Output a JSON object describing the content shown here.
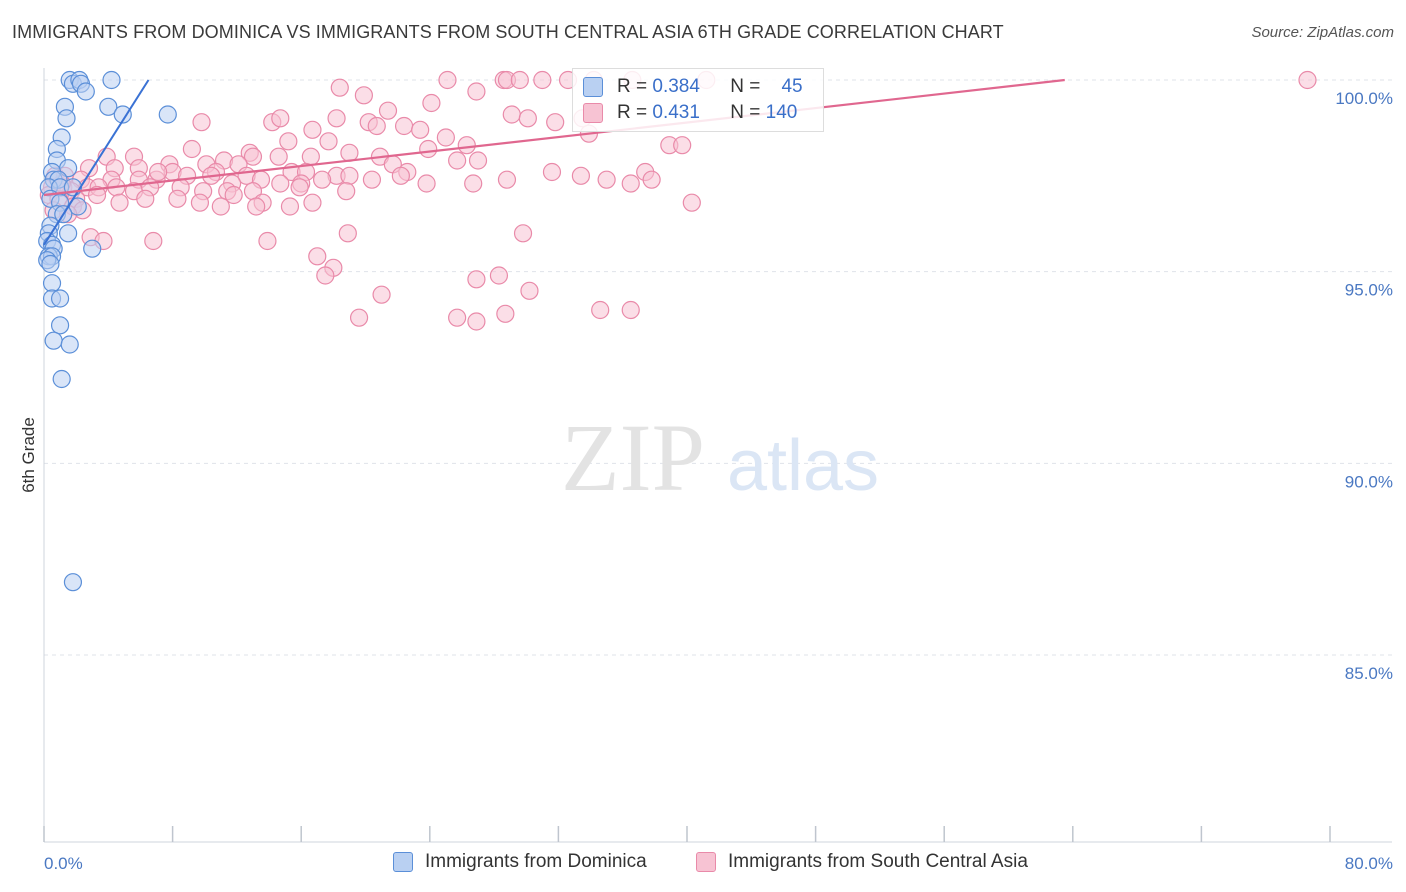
{
  "title": "IMMIGRANTS FROM DOMINICA VS IMMIGRANTS FROM SOUTH CENTRAL ASIA 6TH GRADE CORRELATION CHART",
  "source": "Source: ZipAtlas.com",
  "watermark": {
    "zip": "ZIP",
    "atlas": "atlas"
  },
  "legend": {
    "rows": [
      {
        "r_label": "R =",
        "r_value": "0.384",
        "n_label": "N =",
        "n_value": "45"
      },
      {
        "r_label": "R =",
        "r_value": "0.431",
        "n_label": "N =",
        "n_value": "140"
      }
    ]
  },
  "colors": {
    "dominica_fill": "#b9d0f2",
    "dominica_stroke": "#5b8fd8",
    "dominica_line": "#3a72d4",
    "asia_fill": "#f7c3d3",
    "asia_stroke": "#e98aa9",
    "asia_line": "#e0678f",
    "grid": "#dfe3ea",
    "tick_text": "#4a78c2"
  },
  "chart_data": {
    "type": "scatter",
    "title": "IMMIGRANTS FROM DOMINICA VS IMMIGRANTS FROM SOUTH CENTRAL ASIA 6TH GRADE CORRELATION CHART",
    "xlabel": "",
    "ylabel": "6th Grade",
    "xlim": [
      0,
      80
    ],
    "ylim": [
      80,
      100.8
    ],
    "x_tick_labels": [
      "0.0%",
      "80.0%"
    ],
    "y_ticks": [
      100,
      95,
      90,
      85
    ],
    "y_tick_labels": [
      "100.0%",
      "95.0%",
      "90.0%",
      "85.0%"
    ],
    "series": [
      {
        "name": "Immigrants from Dominica",
        "R": 0.384,
        "N": 45,
        "trend": {
          "x": [
            0,
            6.5
          ],
          "y": [
            95.7,
            100.0
          ]
        },
        "points": [
          [
            1.6,
            100
          ],
          [
            1.8,
            99.9
          ],
          [
            2.2,
            100
          ],
          [
            2.3,
            99.9
          ],
          [
            2.6,
            99.7
          ],
          [
            4.2,
            100
          ],
          [
            4.0,
            99.3
          ],
          [
            1.3,
            99.3
          ],
          [
            1.4,
            99.0
          ],
          [
            4.9,
            99.1
          ],
          [
            7.7,
            99.1
          ],
          [
            1.1,
            98.5
          ],
          [
            0.8,
            98.2
          ],
          [
            0.8,
            97.9
          ],
          [
            1.5,
            97.7
          ],
          [
            0.5,
            97.6
          ],
          [
            0.6,
            97.4
          ],
          [
            0.9,
            97.4
          ],
          [
            0.3,
            97.2
          ],
          [
            1.0,
            97.2
          ],
          [
            1.8,
            97.2
          ],
          [
            0.4,
            96.9
          ],
          [
            1.0,
            96.8
          ],
          [
            2.1,
            96.7
          ],
          [
            0.8,
            96.5
          ],
          [
            1.2,
            96.5
          ],
          [
            0.4,
            96.2
          ],
          [
            0.3,
            96.0
          ],
          [
            1.5,
            96.0
          ],
          [
            0.2,
            95.8
          ],
          [
            0.5,
            95.7
          ],
          [
            0.6,
            95.6
          ],
          [
            3.0,
            95.6
          ],
          [
            0.3,
            95.4
          ],
          [
            0.5,
            95.4
          ],
          [
            0.2,
            95.3
          ],
          [
            0.4,
            95.2
          ],
          [
            0.5,
            94.7
          ],
          [
            0.5,
            94.3
          ],
          [
            1.0,
            94.3
          ],
          [
            1.0,
            93.6
          ],
          [
            0.6,
            93.2
          ],
          [
            1.6,
            93.1
          ],
          [
            1.1,
            92.2
          ],
          [
            1.8,
            86.9
          ]
        ]
      },
      {
        "name": "Immigrants from South Central Asia",
        "R": 0.431,
        "N": 140,
        "trend": {
          "x": [
            0,
            63.5
          ],
          "y": [
            97.0,
            100.0
          ]
        },
        "points": [
          [
            18.4,
            99.8
          ],
          [
            25.1,
            100
          ],
          [
            28.6,
            100
          ],
          [
            28.8,
            100
          ],
          [
            29.6,
            100
          ],
          [
            31.0,
            100
          ],
          [
            32.6,
            100
          ],
          [
            34.2,
            100
          ],
          [
            36.6,
            100
          ],
          [
            41.2,
            100
          ],
          [
            78.6,
            100
          ],
          [
            26.9,
            99.7
          ],
          [
            19.9,
            99.6
          ],
          [
            24.1,
            99.4
          ],
          [
            21.4,
            99.2
          ],
          [
            29.1,
            99.1
          ],
          [
            30.1,
            99.0
          ],
          [
            31.8,
            98.9
          ],
          [
            33.5,
            99.0
          ],
          [
            18.2,
            99.0
          ],
          [
            20.2,
            98.9
          ],
          [
            20.7,
            98.8
          ],
          [
            16.7,
            98.7
          ],
          [
            22.4,
            98.8
          ],
          [
            14.2,
            98.9
          ],
          [
            14.7,
            99.0
          ],
          [
            9.8,
            98.9
          ],
          [
            23.4,
            98.7
          ],
          [
            25.0,
            98.5
          ],
          [
            15.2,
            98.4
          ],
          [
            17.7,
            98.4
          ],
          [
            23.9,
            98.2
          ],
          [
            26.3,
            98.3
          ],
          [
            38.9,
            98.3
          ],
          [
            9.2,
            98.2
          ],
          [
            12.8,
            98.1
          ],
          [
            16.6,
            98.0
          ],
          [
            19.0,
            98.1
          ],
          [
            13.0,
            98.0
          ],
          [
            14.6,
            98.0
          ],
          [
            20.9,
            98.0
          ],
          [
            3.9,
            98.0
          ],
          [
            5.6,
            98.0
          ],
          [
            7.8,
            97.8
          ],
          [
            10.1,
            97.8
          ],
          [
            11.2,
            97.9
          ],
          [
            12.1,
            97.8
          ],
          [
            21.7,
            97.8
          ],
          [
            25.7,
            97.9
          ],
          [
            2.8,
            97.7
          ],
          [
            4.4,
            97.7
          ],
          [
            5.9,
            97.7
          ],
          [
            8.0,
            97.6
          ],
          [
            10.7,
            97.6
          ],
          [
            12.6,
            97.5
          ],
          [
            15.4,
            97.6
          ],
          [
            16.3,
            97.6
          ],
          [
            18.2,
            97.5
          ],
          [
            22.6,
            97.6
          ],
          [
            37.4,
            97.6
          ],
          [
            0.7,
            97.5
          ],
          [
            1.3,
            97.5
          ],
          [
            2.3,
            97.4
          ],
          [
            4.2,
            97.4
          ],
          [
            5.9,
            97.4
          ],
          [
            7.0,
            97.4
          ],
          [
            8.9,
            97.5
          ],
          [
            10.4,
            97.5
          ],
          [
            11.7,
            97.3
          ],
          [
            13.5,
            97.4
          ],
          [
            14.7,
            97.3
          ],
          [
            16.0,
            97.3
          ],
          [
            17.3,
            97.4
          ],
          [
            19.0,
            97.5
          ],
          [
            20.4,
            97.4
          ],
          [
            22.2,
            97.5
          ],
          [
            23.8,
            97.3
          ],
          [
            26.7,
            97.3
          ],
          [
            28.8,
            97.4
          ],
          [
            31.6,
            97.6
          ],
          [
            33.4,
            97.5
          ],
          [
            35.0,
            97.4
          ],
          [
            36.5,
            97.3
          ],
          [
            0.5,
            97.2
          ],
          [
            1.2,
            97.2
          ],
          [
            1.7,
            97.1
          ],
          [
            2.7,
            97.2
          ],
          [
            3.4,
            97.2
          ],
          [
            4.5,
            97.2
          ],
          [
            5.6,
            97.1
          ],
          [
            6.6,
            97.2
          ],
          [
            8.5,
            97.2
          ],
          [
            9.9,
            97.1
          ],
          [
            11.4,
            97.1
          ],
          [
            13.0,
            97.1
          ],
          [
            15.9,
            97.2
          ],
          [
            18.8,
            97.1
          ],
          [
            0.3,
            97.0
          ],
          [
            0.9,
            96.9
          ],
          [
            2.0,
            96.9
          ],
          [
            3.3,
            97.0
          ],
          [
            4.7,
            96.8
          ],
          [
            6.3,
            96.9
          ],
          [
            8.3,
            96.9
          ],
          [
            9.7,
            96.8
          ],
          [
            11.0,
            96.7
          ],
          [
            13.6,
            96.8
          ],
          [
            15.3,
            96.7
          ],
          [
            16.7,
            96.8
          ],
          [
            0.6,
            96.6
          ],
          [
            1.8,
            96.7
          ],
          [
            2.4,
            96.6
          ],
          [
            1.5,
            96.5
          ],
          [
            2.9,
            95.9
          ],
          [
            3.7,
            95.8
          ],
          [
            6.8,
            95.8
          ],
          [
            13.9,
            95.8
          ],
          [
            17.0,
            95.4
          ],
          [
            18.0,
            95.1
          ],
          [
            17.5,
            94.9
          ],
          [
            26.9,
            94.8
          ],
          [
            28.3,
            94.9
          ],
          [
            30.2,
            94.5
          ],
          [
            21.0,
            94.4
          ],
          [
            36.5,
            94.0
          ],
          [
            28.7,
            93.9
          ],
          [
            19.6,
            93.8
          ],
          [
            25.7,
            93.8
          ],
          [
            26.9,
            93.7
          ],
          [
            34.6,
            94.0
          ],
          [
            40.3,
            96.8
          ],
          [
            18.9,
            96.0
          ],
          [
            29.8,
            96.0
          ],
          [
            13.2,
            96.7
          ],
          [
            7.1,
            97.6
          ],
          [
            11.8,
            97.0
          ],
          [
            1.1,
            97.3
          ],
          [
            27.0,
            97.9
          ],
          [
            33.9,
            98.6
          ],
          [
            37.8,
            97.4
          ],
          [
            39.7,
            98.3
          ]
        ]
      }
    ]
  },
  "bottom_legend": [
    "Immigrants from Dominica",
    "Immigrants from South Central Asia"
  ]
}
